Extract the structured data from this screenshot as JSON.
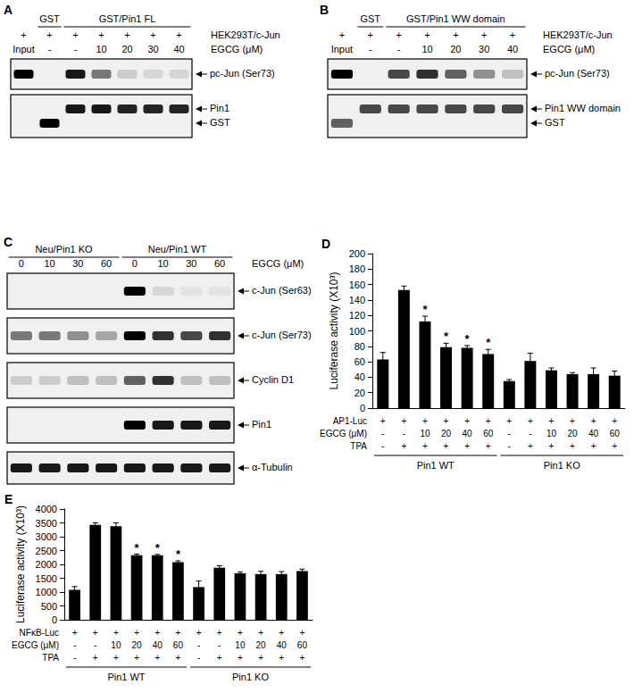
{
  "blots": [
    {
      "panel": "A",
      "cell_line": "HEK293T/c-Jun",
      "row_label": "EGCG (μM)",
      "headers": [
        {
          "text": "GST",
          "lanes": [
            1,
            1
          ]
        },
        {
          "text": "GST/Pin1  FL",
          "lanes": [
            2,
            6
          ]
        }
      ],
      "rows": [
        [
          "+",
          "+",
          "+",
          "+",
          "+",
          "+",
          "+"
        ],
        [
          "Input",
          "-",
          "-",
          "10",
          "20",
          "30",
          "40"
        ]
      ],
      "blots": [
        {
          "labels": [
            "pc-Jun (Ser73)"
          ],
          "intensity": [
            [
              1,
              0,
              0.9,
              0.5,
              0.15,
              0.1,
              0.1
            ]
          ]
        },
        {
          "labels": [
            "Pin1",
            "GST"
          ],
          "intensity": [
            [
              0,
              0,
              0.9,
              0.9,
              0.85,
              0.85,
              0.85
            ],
            [
              0,
              1,
              0,
              0,
              0,
              0,
              0
            ]
          ]
        }
      ]
    },
    {
      "panel": "B",
      "cell_line": "HEK293T/c-Jun",
      "row_label": "EGCG (μM)",
      "headers": [
        {
          "text": "GST",
          "lanes": [
            1,
            1
          ]
        },
        {
          "text": "GST/Pin1  WW  domain",
          "lanes": [
            2,
            6
          ]
        }
      ],
      "rows": [
        [
          "+",
          "+",
          "+",
          "+",
          "+",
          "+",
          "+"
        ],
        [
          "Input",
          "-",
          "-",
          "10",
          "20",
          "30",
          "40"
        ]
      ],
      "blots": [
        {
          "labels": [
            "pc-Jun (Ser73)"
          ],
          "intensity": [
            [
              1,
              0,
              0.7,
              0.8,
              0.6,
              0.4,
              0.2
            ]
          ]
        },
        {
          "labels": [
            "Pin1  WW  domain",
            "GST"
          ],
          "intensity": [
            [
              0,
              0.7,
              0.7,
              0.7,
              0.7,
              0.7,
              0.7
            ],
            [
              0.6,
              0,
              0,
              0,
              0,
              0,
              0
            ]
          ]
        }
      ]
    },
    {
      "panel": "C",
      "row_label": "EGCG (μM)",
      "headers": [
        {
          "text": "Neu/Pin1  KO",
          "lanes": [
            0,
            3
          ]
        },
        {
          "text": "Neu/Pin1  WT",
          "lanes": [
            4,
            7
          ]
        }
      ],
      "rows": [
        [
          "0",
          "10",
          "30",
          "60",
          "0",
          "10",
          "30",
          "60"
        ]
      ],
      "blots": [
        {
          "labels": [
            "c-Jun (Ser63)"
          ],
          "intensity": [
            [
              0,
              0,
              0,
              0,
              1,
              0.1,
              0.05,
              0.05
            ]
          ]
        },
        {
          "labels": [
            "c-Jun (Ser73)"
          ],
          "intensity": [
            [
              0.5,
              0.5,
              0.4,
              0.3,
              1,
              0.8,
              0.7,
              0.8
            ]
          ]
        },
        {
          "labels": [
            "Cyclin D1"
          ],
          "intensity": [
            [
              0.15,
              0.15,
              0.2,
              0.2,
              0.6,
              0.8,
              0.2,
              0.2
            ]
          ]
        },
        {
          "labels": [
            "Pin1"
          ],
          "intensity": [
            [
              0,
              0,
              0,
              0,
              1,
              0.9,
              0.9,
              0.9
            ]
          ]
        },
        {
          "labels": [
            "α-Tubulin"
          ],
          "intensity": [
            [
              0.9,
              0.9,
              0.9,
              0.9,
              0.9,
              0.9,
              0.9,
              0.9
            ]
          ]
        }
      ]
    }
  ],
  "chart_data": [
    {
      "panel": "D",
      "type": "bar",
      "ylabel": "Luciferase activity (X10³)",
      "ylim": [
        0,
        200
      ],
      "yticks": [
        0,
        20,
        40,
        60,
        80,
        100,
        120,
        140,
        160,
        180,
        200
      ],
      "grid": false,
      "color": "#000000",
      "categories": [
        null,
        null,
        null,
        null,
        null,
        null,
        null,
        null,
        null,
        null,
        null,
        null
      ],
      "values": [
        63,
        153,
        112,
        79,
        78,
        70,
        35,
        61,
        49,
        44,
        44,
        42
      ],
      "errors": [
        9,
        5,
        7,
        5,
        3,
        6,
        2,
        10,
        3,
        2,
        8,
        6
      ],
      "annotations": [
        {
          "index": 2,
          "text": "*"
        },
        {
          "index": 3,
          "text": "*"
        },
        {
          "index": 4,
          "text": "*"
        },
        {
          "index": 5,
          "text": "*"
        }
      ],
      "rows": [
        {
          "label": "AP1-Luc",
          "values": [
            "+",
            "+",
            "+",
            "+",
            "+",
            "+",
            "+",
            "+",
            "+",
            "+",
            "+",
            "+"
          ]
        },
        {
          "label": "EGCG (μM)",
          "values": [
            "-",
            "-",
            "10",
            "20",
            "40",
            "60",
            "-",
            "-",
            "10",
            "20",
            "40",
            "60"
          ]
        },
        {
          "label": "TPA",
          "values": [
            "-",
            "+",
            "+",
            "+",
            "+",
            "+",
            "-",
            "+",
            "+",
            "+",
            "+",
            "+"
          ]
        }
      ],
      "groups": [
        {
          "label": "Pin1 WT",
          "from": 0,
          "to": 5
        },
        {
          "label": "Pin1 KO",
          "from": 6,
          "to": 11
        }
      ]
    },
    {
      "panel": "E",
      "type": "bar",
      "ylabel": "Luciferase activity (X10³)",
      "ylim": [
        0,
        4000
      ],
      "yticks": [
        0,
        500,
        1000,
        1500,
        2000,
        2500,
        3000,
        3500,
        4000
      ],
      "grid": false,
      "color": "#000000",
      "categories": [
        null,
        null,
        null,
        null,
        null,
        null,
        null,
        null,
        null,
        null,
        null,
        null
      ],
      "values": [
        1080,
        3430,
        3380,
        2330,
        2330,
        2080,
        1180,
        1880,
        1680,
        1650,
        1650,
        1760
      ],
      "errors": [
        120,
        70,
        120,
        40,
        30,
        50,
        220,
        70,
        50,
        100,
        90,
        70
      ],
      "annotations": [
        {
          "index": 3,
          "text": "*"
        },
        {
          "index": 4,
          "text": "*"
        },
        {
          "index": 5,
          "text": "*"
        }
      ],
      "rows": [
        {
          "label": "NFκB-Luc",
          "values": [
            "+",
            "+",
            "+",
            "+",
            "+",
            "+",
            "+",
            "+",
            "+",
            "+",
            "+",
            "+"
          ]
        },
        {
          "label": "EGCG (μM)",
          "values": [
            "-",
            "-",
            "10",
            "20",
            "40",
            "60",
            "-",
            "-",
            "10",
            "20",
            "40",
            "60"
          ]
        },
        {
          "label": "TPA",
          "values": [
            "-",
            "+",
            "+",
            "+",
            "+",
            "+",
            "-",
            "+",
            "+",
            "+",
            "+",
            "+"
          ]
        }
      ],
      "groups": [
        {
          "label": "Pin1 WT",
          "from": 0,
          "to": 5
        },
        {
          "label": "Pin1 KO",
          "from": 6,
          "to": 11
        }
      ]
    }
  ]
}
